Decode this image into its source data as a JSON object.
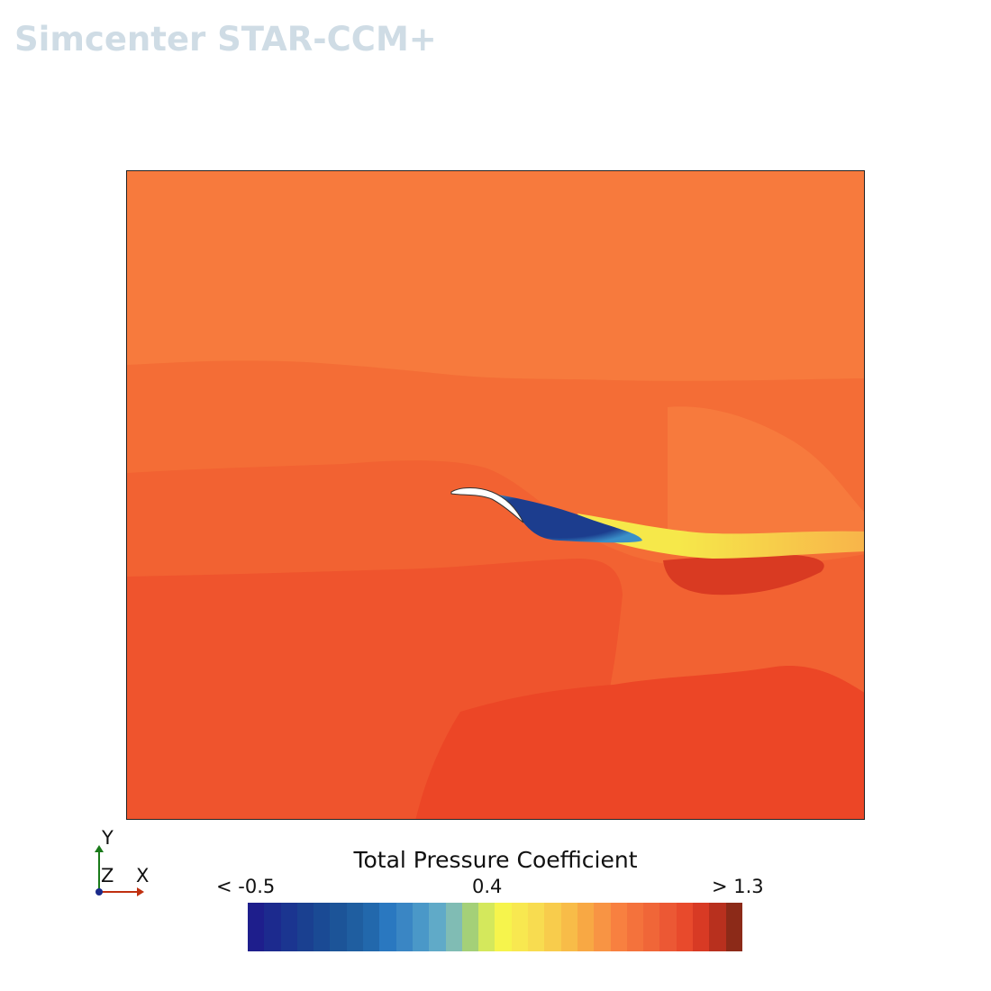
{
  "watermark": "Simcenter STAR-CCM+",
  "triad": {
    "y_label": "Y",
    "z_label": "Z",
    "x_label": "X",
    "y_color": "#1a7a1a",
    "x_color": "#c03010",
    "origin_color": "#1a2a8a"
  },
  "legend": {
    "title": "Total Pressure Coefficient",
    "min_label": "< -0.5",
    "mid_label": "0.4",
    "max_label": "> 1.3",
    "colors": [
      "#1e1e8c",
      "#1c2a8e",
      "#1b3590",
      "#1a4090",
      "#1a4a94",
      "#1c5498",
      "#1f5ea0",
      "#2268ac",
      "#2a78c0",
      "#3a86c4",
      "#4a98c8",
      "#60aac8",
      "#80bcb4",
      "#a4d078",
      "#d4e85c",
      "#f6f44c",
      "#f8e850",
      "#f8dc50",
      "#f8cc4c",
      "#f8bc48",
      "#f8a844",
      "#f89444",
      "#f88040",
      "#f4723c",
      "#f06638",
      "#ec5834",
      "#e84a2c",
      "#d83a24",
      "#b8301e",
      "#8c2a18"
    ]
  },
  "field_colors": {
    "top": "#f77a3d",
    "upper_mid": "#f46d36",
    "mid": "#f26232",
    "lower": "#ef542d",
    "bottom": "#ec4626",
    "dark_pocket": "#d93a22",
    "separation_core": "#1c3d8e",
    "separation_edge": "#3a8fc8",
    "wake_yellow": "#f6e84a",
    "wake_orange": "#f8b44a",
    "airfoil": "#ffffff"
  }
}
